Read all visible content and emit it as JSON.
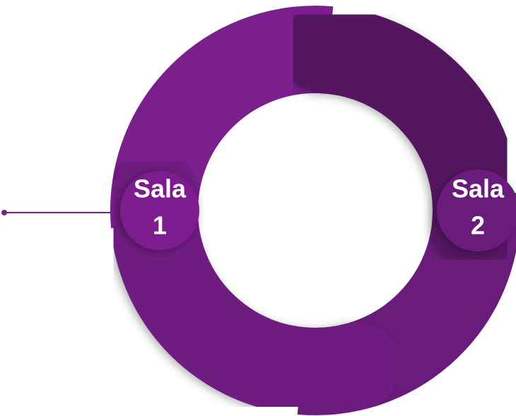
{
  "rooms": [
    {
      "lines": [
        "Sala",
        "1"
      ]
    },
    {
      "lines": [
        "Sala",
        "2"
      ]
    }
  ]
}
